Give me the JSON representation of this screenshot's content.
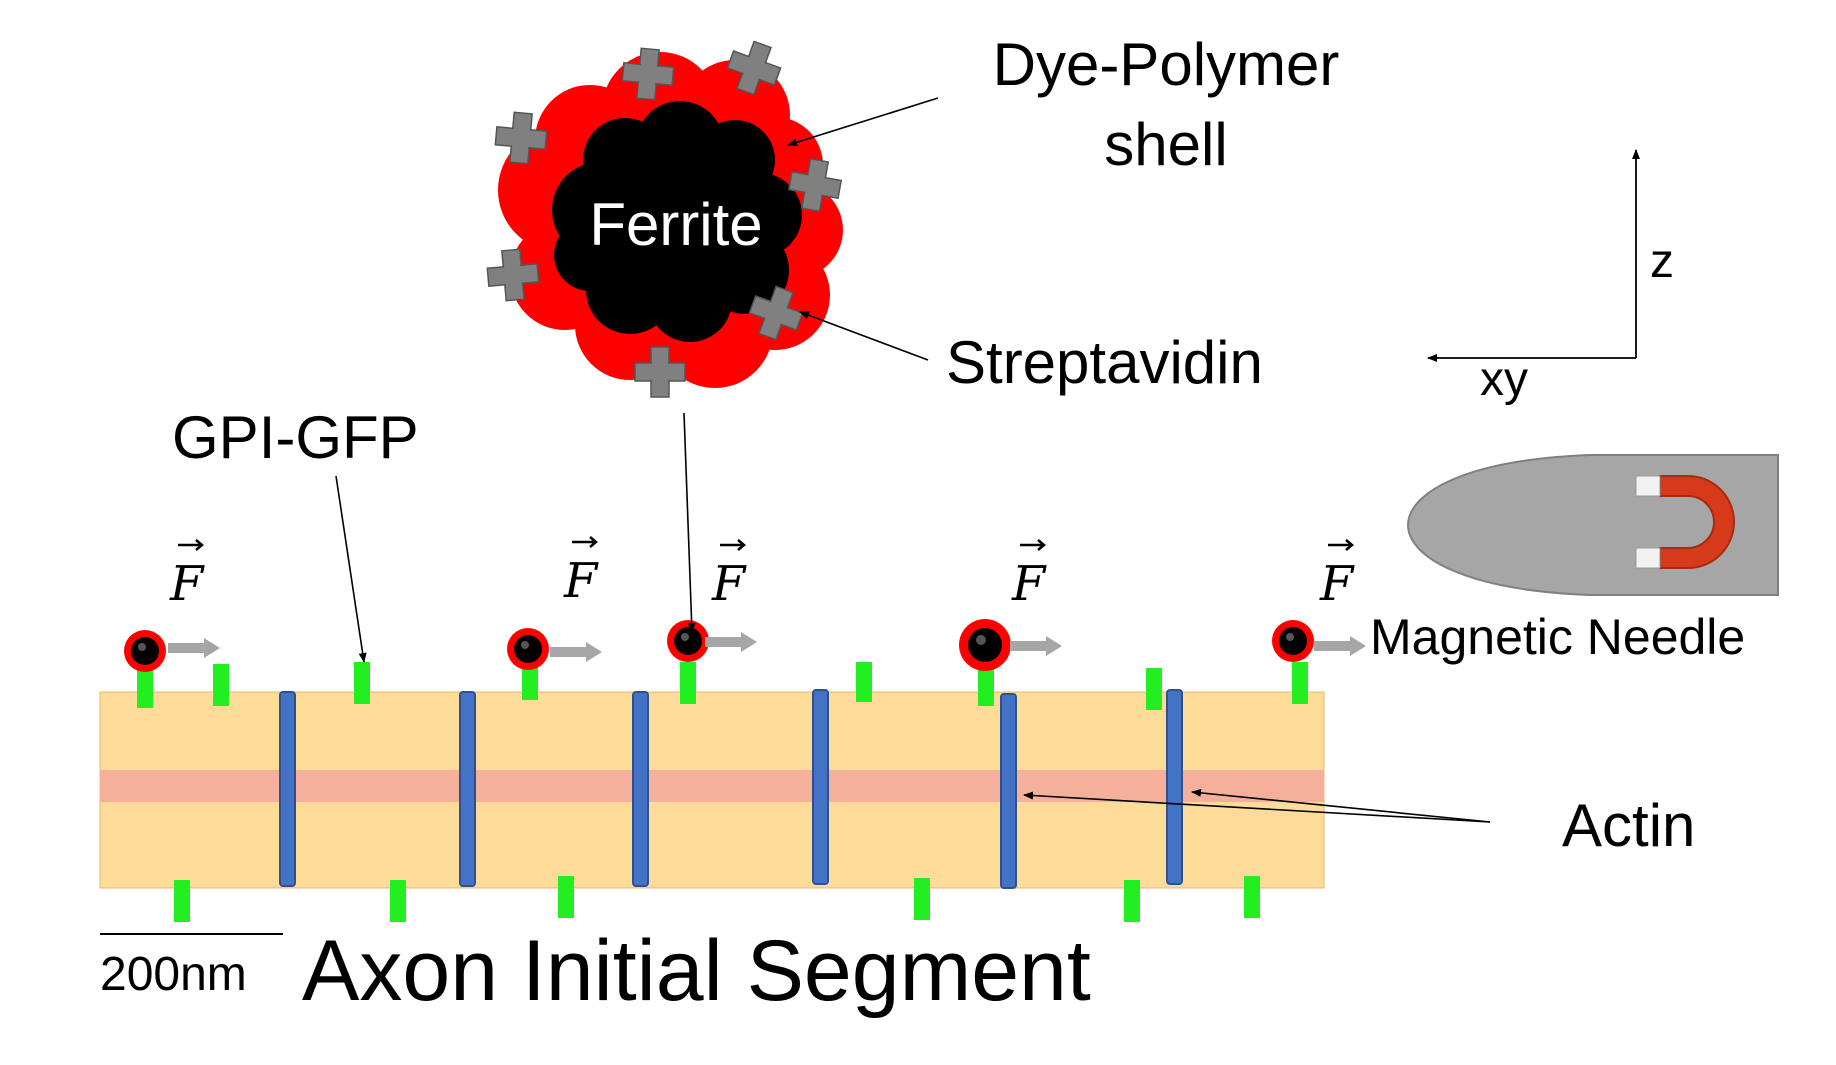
{
  "labels": {
    "dye_polymer_line1": "Dye-Polymer",
    "dye_polymer_line2": "shell",
    "ferrite": "Ferrite",
    "streptavidin": "Streptavidin",
    "gpi_gfp": "GPI-GFP",
    "magnetic_needle": "Magnetic Needle",
    "actin": "Actin",
    "scale_bar": "200nm",
    "title": "Axon Initial Segment",
    "axis_z": "z",
    "axis_xy": "xy",
    "force_symbol": "F"
  },
  "colors": {
    "axon_fill": "#fddc9a",
    "axon_band": "#f4b09a",
    "spectrin_blue": "#4472c4",
    "gfp_green": "#22ee22",
    "shell_red": "#ff0000",
    "ferrite_black": "#000000",
    "streptavidin_gray": "#808080",
    "force_arrow_gray": "#a6a6a6",
    "needle_gray": "#a6a6a6",
    "magnet_red": "#d63a1a"
  },
  "icons": {
    "magnet": "horseshoe-magnet-icon",
    "streptavidin": "plus-cross-icon",
    "force": "force-vector-arrow-icon"
  }
}
